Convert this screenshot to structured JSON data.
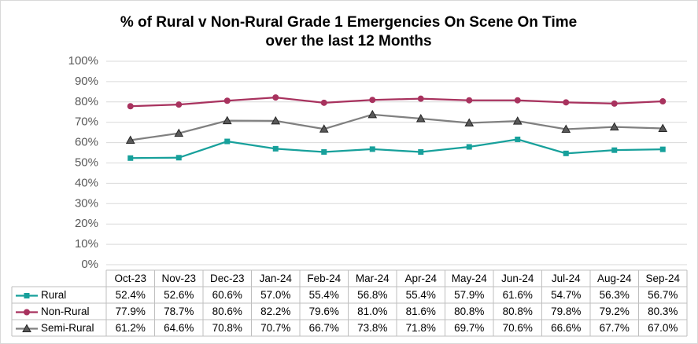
{
  "chart_data": {
    "type": "line",
    "title": [
      "% of Rural v Non-Rural Grade 1 Emergencies On Scene On Time",
      "over the last 12 Months"
    ],
    "categories": [
      "Oct-23",
      "Nov-23",
      "Dec-23",
      "Jan-24",
      "Feb-24",
      "Mar-24",
      "Apr-24",
      "May-24",
      "Jun-24",
      "Jul-24",
      "Aug-24",
      "Sep-24"
    ],
    "series": [
      {
        "name": "Rural",
        "color": "#17a09b",
        "marker": "square",
        "values": [
          52.4,
          52.6,
          60.6,
          57.0,
          55.4,
          56.8,
          55.4,
          57.9,
          61.6,
          54.7,
          56.3,
          56.7
        ],
        "value_labels": [
          "52.4%",
          "52.6%",
          "60.6%",
          "57.0%",
          "55.4%",
          "56.8%",
          "55.4%",
          "57.9%",
          "61.6%",
          "54.7%",
          "56.3%",
          "56.7%"
        ]
      },
      {
        "name": "Non-Rural",
        "color": "#a8325e",
        "marker": "circle",
        "values": [
          77.9,
          78.7,
          80.6,
          82.2,
          79.6,
          81.0,
          81.6,
          80.8,
          80.8,
          79.8,
          79.2,
          80.3
        ],
        "value_labels": [
          "77.9%",
          "78.7%",
          "80.6%",
          "82.2%",
          "79.6%",
          "81.0%",
          "81.6%",
          "80.8%",
          "80.8%",
          "79.8%",
          "79.2%",
          "80.3%"
        ]
      },
      {
        "name": "Semi-Rural",
        "color": "#808080",
        "marker": "triangle",
        "values": [
          61.2,
          64.6,
          70.8,
          70.7,
          66.7,
          73.8,
          71.8,
          69.7,
          70.6,
          66.6,
          67.7,
          67.0
        ],
        "value_labels": [
          "61.2%",
          "64.6%",
          "70.8%",
          "70.7%",
          "66.7%",
          "73.8%",
          "71.8%",
          "69.7%",
          "70.6%",
          "66.6%",
          "67.7%",
          "67.0%"
        ]
      }
    ],
    "ylim": [
      0,
      100
    ],
    "yticks": [
      {
        "value": 0,
        "label": "0%"
      },
      {
        "value": 10,
        "label": "10%"
      },
      {
        "value": 20,
        "label": "20%"
      },
      {
        "value": 30,
        "label": "30%"
      },
      {
        "value": 40,
        "label": "40%"
      },
      {
        "value": 50,
        "label": "50%"
      },
      {
        "value": 60,
        "label": "60%"
      },
      {
        "value": 70,
        "label": "70%"
      },
      {
        "value": 80,
        "label": "80%"
      },
      {
        "value": 90,
        "label": "90%"
      },
      {
        "value": 100,
        "label": "100%"
      }
    ],
    "grid": true
  }
}
